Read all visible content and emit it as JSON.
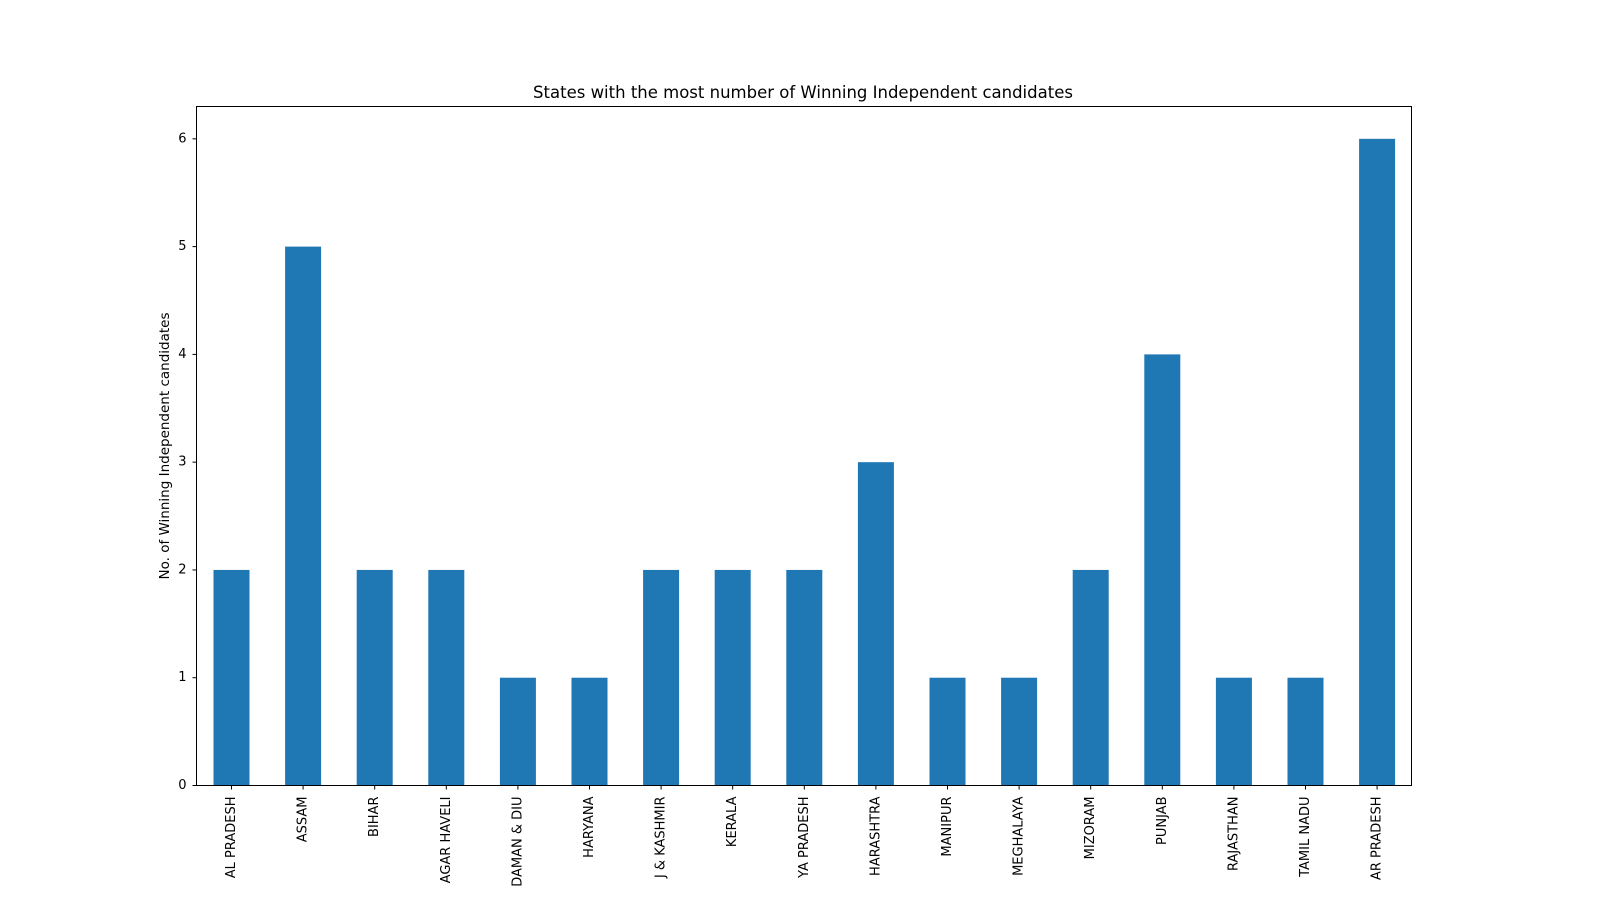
{
  "chart_data": {
    "type": "bar",
    "title": "States with the most number of Winning Independent candidates",
    "xlabel": "",
    "ylabel": "No. of Winning Independent candidates",
    "categories": [
      "AL PRADESH",
      "ASSAM",
      "BIHAR",
      "AGAR HAVELI",
      "DAMAN & DIU",
      "HARYANA",
      "J & KASHMIR",
      "KERALA",
      "YA PRADESH",
      "HARASHTRA",
      "MANIPUR",
      "MEGHALAYA",
      "MIZORAM",
      "PUNJAB",
      "RAJASTHAN",
      "TAMIL NADU",
      "AR PRADESH"
    ],
    "values": [
      2,
      5,
      2,
      2,
      1,
      1,
      2,
      2,
      2,
      3,
      1,
      1,
      2,
      4,
      1,
      1,
      6
    ],
    "ylim": [
      0,
      6.3
    ],
    "yticks": [
      0,
      1,
      2,
      3,
      4,
      5,
      6
    ],
    "bar_color": "#1f77b4",
    "grid": false,
    "legend": "none"
  }
}
